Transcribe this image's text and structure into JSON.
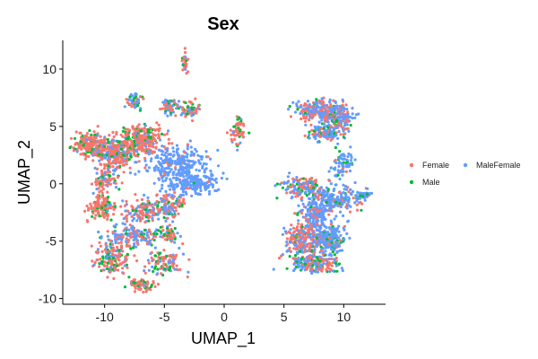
{
  "chart_data": {
    "type": "scatter",
    "title": "Sex",
    "xlabel": "UMAP_1",
    "ylabel": "UMAP_2",
    "xlim": [
      -13.5,
      13.5
    ],
    "ylim": [
      -10.5,
      12.5
    ],
    "xticks": [
      -10,
      -5,
      0,
      5,
      10
    ],
    "yticks": [
      -10,
      -5,
      0,
      5,
      10
    ],
    "grid": false,
    "legend_position": "right",
    "colors": {
      "Female": "#F8766D",
      "MaleFemale": "#619CFF",
      "Male": "#00BA38"
    },
    "series": [
      {
        "name": "Female",
        "color": "#F8766D"
      },
      {
        "name": "Male",
        "color": "#00BA38"
      },
      {
        "name": "MaleFemale",
        "color": "#619CFF"
      }
    ],
    "clusters": [
      {
        "cx": -11.0,
        "cy": 3.3,
        "sx": 1.0,
        "sy": 0.7,
        "n": 260,
        "mix": [
          0.72,
          0.18,
          0.1
        ]
      },
      {
        "cx": -9.0,
        "cy": 2.5,
        "sx": 0.9,
        "sy": 0.9,
        "n": 220,
        "mix": [
          0.6,
          0.15,
          0.25
        ]
      },
      {
        "cx": -7.0,
        "cy": 3.8,
        "sx": 1.3,
        "sy": 0.8,
        "n": 280,
        "mix": [
          0.75,
          0.15,
          0.1
        ]
      },
      {
        "cx": -10.0,
        "cy": 0.4,
        "sx": 0.7,
        "sy": 0.8,
        "n": 90,
        "mix": [
          0.55,
          0.2,
          0.25
        ]
      },
      {
        "cx": -10.3,
        "cy": -2.0,
        "sx": 0.7,
        "sy": 0.7,
        "n": 120,
        "mix": [
          0.75,
          0.2,
          0.05
        ]
      },
      {
        "cx": -6.5,
        "cy": -2.3,
        "sx": 1.3,
        "sy": 0.7,
        "n": 150,
        "mix": [
          0.45,
          0.15,
          0.4
        ]
      },
      {
        "cx": -7.8,
        "cy": -4.5,
        "sx": 1.7,
        "sy": 0.7,
        "n": 170,
        "mix": [
          0.35,
          0.15,
          0.5
        ]
      },
      {
        "cx": -9.5,
        "cy": -6.5,
        "sx": 1.0,
        "sy": 1.0,
        "n": 150,
        "mix": [
          0.62,
          0.2,
          0.18
        ]
      },
      {
        "cx": -7.0,
        "cy": -8.8,
        "sx": 0.7,
        "sy": 0.4,
        "n": 70,
        "mix": [
          0.7,
          0.2,
          0.1
        ]
      },
      {
        "cx": -5.0,
        "cy": -7.0,
        "sx": 1.0,
        "sy": 0.8,
        "n": 100,
        "mix": [
          0.55,
          0.25,
          0.2
        ]
      },
      {
        "cx": -4.5,
        "cy": -4.5,
        "sx": 0.5,
        "sy": 0.5,
        "n": 60,
        "mix": [
          0.55,
          0.25,
          0.2
        ]
      },
      {
        "cx": -4.5,
        "cy": -2.0,
        "sx": 0.7,
        "sy": 0.7,
        "n": 90,
        "mix": [
          0.5,
          0.15,
          0.35
        ]
      },
      {
        "cx": -4.0,
        "cy": 1.8,
        "sx": 1.8,
        "sy": 0.9,
        "n": 240,
        "mix": [
          0.08,
          0.02,
          0.9
        ]
      },
      {
        "cx": -2.7,
        "cy": 0.0,
        "sx": 1.6,
        "sy": 0.6,
        "n": 200,
        "mix": [
          0.05,
          0.01,
          0.94
        ]
      },
      {
        "cx": -7.4,
        "cy": 7.2,
        "sx": 0.4,
        "sy": 0.5,
        "n": 50,
        "mix": [
          0.35,
          0.2,
          0.45
        ]
      },
      {
        "cx": -4.5,
        "cy": 6.8,
        "sx": 0.5,
        "sy": 0.5,
        "n": 50,
        "mix": [
          0.3,
          0.15,
          0.55
        ]
      },
      {
        "cx": -2.9,
        "cy": 6.5,
        "sx": 0.8,
        "sy": 0.4,
        "n": 60,
        "mix": [
          0.6,
          0.2,
          0.2
        ]
      },
      {
        "cx": 1.2,
        "cy": 4.6,
        "sx": 0.4,
        "sy": 0.8,
        "n": 60,
        "mix": [
          0.6,
          0.25,
          0.15
        ]
      },
      {
        "cx": -3.3,
        "cy": 10.5,
        "sx": 0.2,
        "sy": 0.6,
        "n": 30,
        "mix": [
          0.5,
          0.25,
          0.25
        ]
      },
      {
        "cx": 7.7,
        "cy": 6.4,
        "sx": 1.3,
        "sy": 0.6,
        "n": 230,
        "mix": [
          0.4,
          0.08,
          0.52
        ]
      },
      {
        "cx": 9.5,
        "cy": 5.8,
        "sx": 0.9,
        "sy": 0.8,
        "n": 170,
        "mix": [
          0.35,
          0.1,
          0.55
        ]
      },
      {
        "cx": 8.5,
        "cy": 4.4,
        "sx": 1.0,
        "sy": 0.4,
        "n": 110,
        "mix": [
          0.3,
          0.1,
          0.6
        ]
      },
      {
        "cx": 10.0,
        "cy": 1.8,
        "sx": 0.6,
        "sy": 0.8,
        "n": 70,
        "mix": [
          0.15,
          0.15,
          0.7
        ]
      },
      {
        "cx": 6.5,
        "cy": -0.3,
        "sx": 1.1,
        "sy": 0.6,
        "n": 150,
        "mix": [
          0.35,
          0.2,
          0.45
        ]
      },
      {
        "cx": 9.0,
        "cy": -1.5,
        "sx": 1.4,
        "sy": 1.0,
        "n": 220,
        "mix": [
          0.2,
          0.08,
          0.72
        ]
      },
      {
        "cx": 7.5,
        "cy": -3.0,
        "sx": 0.8,
        "sy": 1.0,
        "n": 180,
        "mix": [
          0.15,
          0.05,
          0.8
        ]
      },
      {
        "cx": 6.5,
        "cy": -5.0,
        "sx": 1.0,
        "sy": 1.0,
        "n": 220,
        "mix": [
          0.5,
          0.12,
          0.38
        ]
      },
      {
        "cx": 8.8,
        "cy": -5.0,
        "sx": 0.9,
        "sy": 0.9,
        "n": 200,
        "mix": [
          0.2,
          0.08,
          0.72
        ]
      },
      {
        "cx": 7.5,
        "cy": -7.0,
        "sx": 1.3,
        "sy": 0.5,
        "n": 190,
        "mix": [
          0.4,
          0.18,
          0.42
        ]
      },
      {
        "cx": 11.6,
        "cy": -1.0,
        "sx": 0.4,
        "sy": 0.2,
        "n": 35,
        "mix": [
          0.15,
          0.1,
          0.75
        ]
      }
    ]
  }
}
